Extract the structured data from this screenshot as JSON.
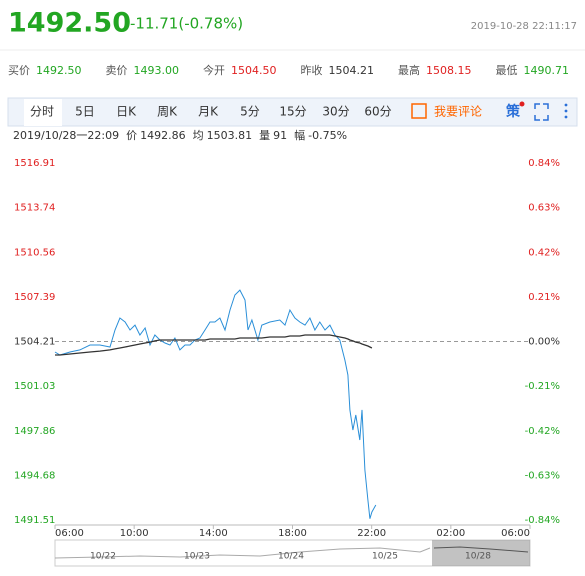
{
  "header": {
    "price": "1492.50",
    "change": "-11.71(-0.78%)",
    "timestamp": "2019-10-28 22:11:17"
  },
  "stats": [
    {
      "label": "买价",
      "value": "1492.50",
      "color": "#22a622"
    },
    {
      "label": "卖价",
      "value": "1493.00",
      "color": "#22a622"
    },
    {
      "label": "今开",
      "value": "1504.50",
      "color": "#e02020"
    },
    {
      "label": "昨收",
      "value": "1504.21",
      "color": "#333333"
    },
    {
      "label": "最高",
      "value": "1508.15",
      "color": "#e02020"
    },
    {
      "label": "最低",
      "value": "1490.71",
      "color": "#22a622"
    }
  ],
  "tabs": [
    "分时",
    "5日",
    "日K",
    "周K",
    "月K",
    "5分",
    "15分",
    "30分",
    "60分"
  ],
  "toolbar": {
    "comment": "我要评论",
    "strategy": "策"
  },
  "info": {
    "time": "2019/10/28一22:09",
    "price_label": "价",
    "price": "1492.86",
    "avg_label": "均",
    "avg": "1503.81",
    "vol_label": "量",
    "vol": "91",
    "amp_label": "幅",
    "amp": "-0.75%"
  },
  "chart_data": {
    "type": "line",
    "x": [
      0,
      0.25,
      0.76,
      1.26,
      1.77,
      2.27,
      2.78,
      3.03,
      3.28,
      3.54,
      3.79,
      4.04,
      4.29,
      4.55,
      4.8,
      5.05,
      5.3,
      5.56,
      5.81,
      6.06,
      6.31,
      6.57,
      6.82,
      7.07,
      7.32,
      7.58,
      7.83,
      8.08,
      8.33,
      8.59,
      8.84,
      9.09,
      9.34,
      9.6,
      9.75,
      9.95,
      10.25,
      10.45,
      10.86,
      11.36,
      11.62,
      11.87,
      12.12,
      12.37,
      12.63,
      12.88,
      13.13,
      13.38,
      13.64,
      13.89,
      14.14,
      14.39,
      14.65,
      14.8,
      14.9,
      15.05,
      15.2,
      15.4,
      15.51,
      15.66,
      15.81,
      15.91,
      16.01,
      16.21
    ],
    "series": [
      {
        "color": "#2a8fd8",
        "values": [
          1503.46,
          1503.25,
          1503.46,
          1503.61,
          1503.96,
          1503.96,
          1503.82,
          1505.03,
          1505.88,
          1505.6,
          1505.03,
          1505.38,
          1504.67,
          1505.17,
          1503.96,
          1504.67,
          1504.32,
          1504.1,
          1503.96,
          1504.46,
          1503.61,
          1503.96,
          1503.96,
          1504.32,
          1504.46,
          1505.03,
          1505.6,
          1505.6,
          1505.88,
          1505.03,
          1506.45,
          1507.52,
          1507.87,
          1507.16,
          1505.03,
          1505.74,
          1504.32,
          1505.38,
          1505.6,
          1505.74,
          1505.38,
          1506.45,
          1505.88,
          1505.6,
          1505.38,
          1505.88,
          1505.03,
          1505.6,
          1505.03,
          1505.38,
          1504.67,
          1504.32,
          1502.89,
          1501.83,
          1499.34,
          1497.91,
          1498.98,
          1497.2,
          1499.34,
          1495.07,
          1492.93,
          1491.6,
          1492.08,
          1492.58
        ]
      },
      {
        "color": "#333333",
        "values": [
          1503.25,
          1503.25,
          1503.32,
          1503.39,
          1503.46,
          1503.53,
          1503.61,
          1503.68,
          1503.75,
          1503.82,
          1503.89,
          1503.96,
          1504.03,
          1504.1,
          1504.17,
          1504.25,
          1504.32,
          1504.32,
          1504.32,
          1504.32,
          1504.32,
          1504.32,
          1504.32,
          1504.32,
          1504.32,
          1504.32,
          1504.39,
          1504.39,
          1504.39,
          1504.39,
          1504.39,
          1504.39,
          1504.46,
          1504.46,
          1504.46,
          1504.46,
          1504.46,
          1504.46,
          1504.53,
          1504.53,
          1504.53,
          1504.6,
          1504.6,
          1504.6,
          1504.67,
          1504.67,
          1504.67,
          1504.67,
          1504.67,
          1504.67,
          1504.6,
          1504.53,
          1504.46,
          1504.39,
          1504.32,
          1504.25,
          1504.17,
          1504.1,
          1504.03,
          1503.96,
          1503.89,
          1503.82,
          1503.75,
          null
        ]
      }
    ],
    "xlim": [
      0,
      24
    ],
    "xticks": [
      {
        "value": 0,
        "label": "06:00"
      },
      {
        "value": 4,
        "label": "10:00"
      },
      {
        "value": 8,
        "label": "14:00"
      },
      {
        "value": 12,
        "label": "18:00"
      },
      {
        "value": 16,
        "label": "22:00"
      },
      {
        "value": 20,
        "label": "02:00"
      },
      {
        "value": 24,
        "label": "06:00"
      }
    ],
    "ylim": [
      1491.51,
      1516.91
    ],
    "yticks": [
      1516.91,
      1513.74,
      1510.56,
      1507.39,
      1504.21,
      1501.03,
      1497.86,
      1494.68,
      1491.51
    ],
    "y2lim": [
      -0.84,
      0.84
    ],
    "y2ticks": [
      {
        "value": 0.84,
        "label": "0.84%"
      },
      {
        "value": 0.63,
        "label": "0.63%"
      },
      {
        "value": 0.42,
        "label": "0.42%"
      },
      {
        "value": 0.21,
        "label": "0.21%"
      },
      {
        "value": 0,
        "label": "0.00%"
      },
      {
        "value": -0.21,
        "label": "-0.21%"
      },
      {
        "value": -0.42,
        "label": "-0.42%"
      },
      {
        "value": -0.63,
        "label": "-0.63%"
      },
      {
        "value": -0.84,
        "label": "-0.84%"
      }
    ],
    "up_color": "#e02020",
    "down_color": "#22a622",
    "navigator_labels": [
      "10/22",
      "10/23",
      "10/24",
      "10/25",
      "10/28"
    ]
  }
}
